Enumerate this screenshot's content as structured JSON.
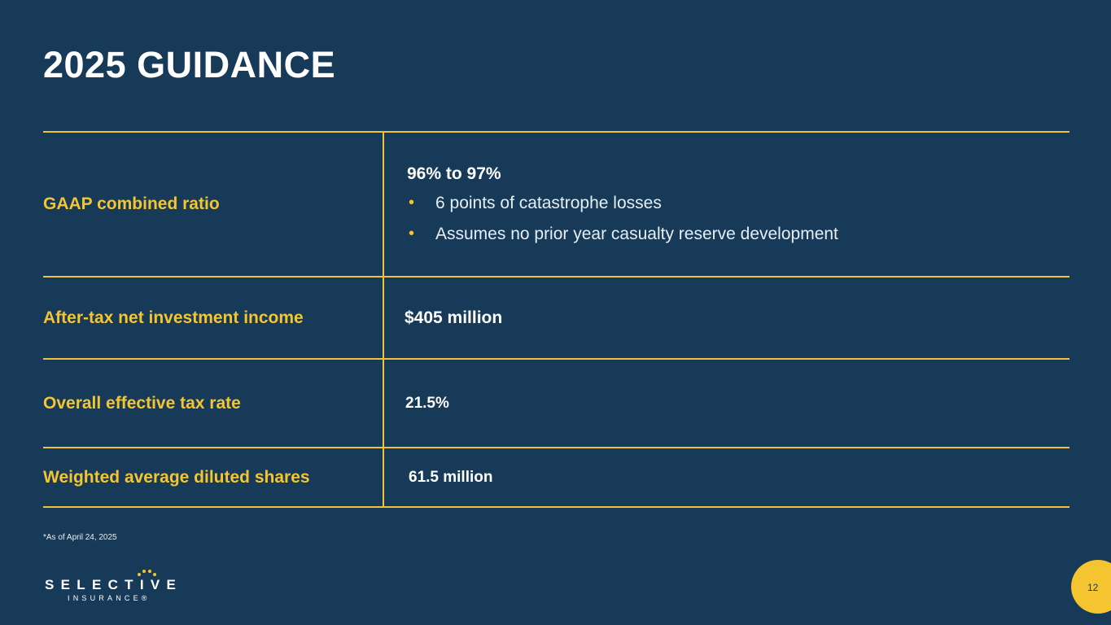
{
  "slide": {
    "title": "2025 GUIDANCE",
    "footnote": "*As of April 24, 2025",
    "page_number": "12"
  },
  "rows": [
    {
      "label": "GAAP combined ratio",
      "value": "96% to 97%",
      "bullets": [
        "6 points of catastrophe losses",
        "Assumes no prior year casualty reserve development"
      ]
    },
    {
      "label": "After-tax net investment income",
      "value": "$405 million"
    },
    {
      "label": "Overall effective tax rate",
      "value": "21.5%"
    },
    {
      "label": "Weighted average diluted shares",
      "value": "61.5 million"
    }
  ],
  "logo": {
    "name": "SELECTIVE",
    "sub": "INSURANCE®"
  },
  "colors": {
    "background": "#163a57",
    "accent": "#f5c431",
    "text": "#ffffff"
  }
}
